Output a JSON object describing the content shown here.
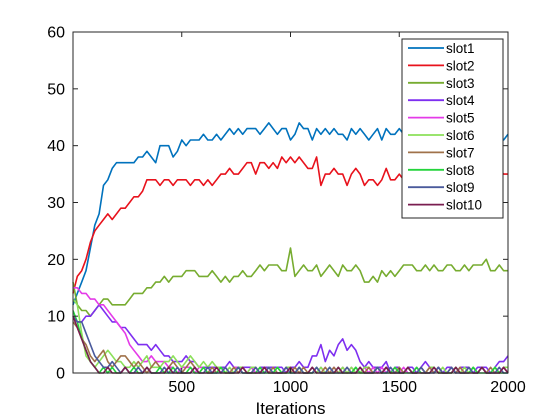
{
  "chart_data": {
    "type": "line",
    "title": "",
    "xlabel": "Iterations",
    "ylabel": "",
    "xlim": [
      0,
      2000
    ],
    "ylim": [
      0,
      60
    ],
    "xticks": [
      500,
      1000,
      1500,
      2000
    ],
    "xtick_labels": [
      "500",
      "1000",
      "1500",
      "2000"
    ],
    "yticks": [
      0,
      10,
      20,
      30,
      40,
      50,
      60
    ],
    "ytick_labels": [
      "0",
      "10",
      "20",
      "30",
      "40",
      "50",
      "60"
    ],
    "grid": false,
    "legend_position": "top-right",
    "x": [
      0,
      20,
      40,
      60,
      80,
      100,
      120,
      140,
      160,
      180,
      200,
      220,
      240,
      260,
      280,
      300,
      320,
      340,
      360,
      380,
      400,
      420,
      440,
      460,
      480,
      500,
      520,
      540,
      560,
      580,
      600,
      620,
      640,
      660,
      680,
      700,
      720,
      740,
      760,
      780,
      800,
      820,
      840,
      860,
      880,
      900,
      920,
      940,
      960,
      980,
      1000,
      1020,
      1040,
      1060,
      1080,
      1100,
      1120,
      1140,
      1160,
      1180,
      1200,
      1220,
      1240,
      1260,
      1280,
      1300,
      1320,
      1340,
      1360,
      1380,
      1400,
      1420,
      1440,
      1460,
      1480,
      1500,
      1520,
      1540,
      1560,
      1580,
      1600,
      1620,
      1640,
      1660,
      1680,
      1700,
      1720,
      1740,
      1760,
      1780,
      1800,
      1820,
      1840,
      1860,
      1880,
      1900,
      1920,
      1940,
      1960,
      1980,
      2000
    ],
    "series": [
      {
        "name": "slot1",
        "color": "#0072BD",
        "values": [
          12,
          14,
          16,
          18,
          22,
          26,
          28,
          33,
          34,
          36,
          37,
          37,
          37,
          37,
          37,
          38,
          38,
          39,
          38,
          37,
          40,
          40,
          40,
          38,
          39,
          41,
          40,
          41,
          41,
          41,
          42,
          41,
          41,
          42,
          41,
          42,
          43,
          42,
          43,
          42,
          43,
          43,
          43,
          42,
          43,
          44,
          43,
          42,
          43,
          43,
          41,
          42,
          44,
          43,
          43,
          41,
          43,
          42,
          43,
          42,
          43,
          42,
          42,
          41,
          43,
          42,
          43,
          42,
          41,
          42,
          43,
          41,
          43,
          42,
          42,
          43,
          42,
          41,
          42,
          43,
          41,
          42,
          43,
          42,
          41,
          42,
          43,
          41,
          42,
          43,
          41,
          42,
          43,
          43,
          42,
          42,
          42,
          42,
          41,
          41,
          42
        ]
      },
      {
        "name": "slot2",
        "color": "#E8121C",
        "values": [
          14,
          17,
          18,
          20,
          23,
          25,
          26,
          27,
          28,
          27,
          28,
          29,
          29,
          30,
          31,
          31,
          32,
          34,
          34,
          34,
          33,
          34,
          34,
          33,
          34,
          34,
          34,
          33,
          34,
          34,
          33,
          34,
          33,
          34,
          35,
          35,
          36,
          35,
          35,
          36,
          37,
          37,
          35,
          37,
          37,
          36,
          37,
          36,
          38,
          37,
          38,
          37,
          38,
          37,
          36,
          36,
          38,
          33,
          35,
          35,
          36,
          35,
          35,
          33,
          35,
          36,
          35,
          33,
          34,
          34,
          33,
          34,
          36,
          34,
          34,
          35,
          34,
          37,
          34,
          35,
          35,
          34,
          36,
          36,
          37,
          35,
          36,
          36,
          37,
          35,
          37,
          36,
          35,
          37,
          36,
          36,
          35,
          35,
          36,
          35,
          35
        ]
      },
      {
        "name": "slot3",
        "color": "#77AC30",
        "values": [
          16,
          12,
          11,
          11,
          10,
          11,
          12,
          13,
          13,
          12,
          12,
          12,
          12,
          13,
          14,
          14,
          14,
          15,
          15,
          16,
          16,
          17,
          16,
          17,
          17,
          17,
          18,
          18,
          18,
          17,
          17,
          17,
          18,
          17,
          16,
          17,
          16,
          17,
          17,
          18,
          17,
          17,
          18,
          19,
          18,
          19,
          19,
          19,
          18,
          18,
          22,
          17,
          18,
          19,
          18,
          18,
          19,
          17,
          18,
          19,
          18,
          17,
          19,
          18,
          18,
          19,
          18,
          16,
          16,
          17,
          16,
          18,
          17,
          18,
          17,
          18,
          19,
          19,
          19,
          18,
          18,
          19,
          18,
          19,
          18,
          18,
          19,
          19,
          18,
          18,
          19,
          18,
          19,
          19,
          19,
          20,
          18,
          18,
          19,
          18,
          18
        ]
      },
      {
        "name": "slot4",
        "color": "#7E2FF0",
        "values": [
          10,
          9,
          9,
          10,
          10,
          11,
          12,
          11,
          10,
          9,
          9,
          8,
          8,
          7,
          6,
          5,
          5,
          5,
          4,
          5,
          4,
          3,
          3,
          2,
          2,
          2,
          3,
          2,
          2,
          1,
          1,
          1,
          1,
          1,
          1,
          1,
          2,
          1,
          1,
          1,
          1,
          1,
          0,
          1,
          1,
          1,
          1,
          1,
          1,
          0,
          1,
          1,
          2,
          1,
          1,
          3,
          3,
          5,
          2,
          4,
          3,
          5,
          6,
          4,
          5,
          4,
          2,
          1,
          2,
          1,
          1,
          1,
          2,
          0,
          1,
          1,
          0,
          1,
          1,
          0,
          1,
          2,
          1,
          0,
          1,
          0,
          1,
          1,
          0,
          1,
          1,
          1,
          0,
          1,
          1,
          1,
          0,
          1,
          2,
          2,
          3
        ]
      },
      {
        "name": "slot5",
        "color": "#E43BE8",
        "values": [
          15,
          15,
          14,
          14,
          13,
          13,
          12,
          12,
          11,
          10,
          9,
          8,
          7,
          5,
          4,
          3,
          2,
          2,
          3,
          2,
          2,
          2,
          1,
          1,
          0,
          1,
          1,
          1,
          0,
          1,
          1,
          0,
          0,
          1,
          0,
          1,
          0,
          1,
          1,
          0,
          0,
          1,
          0,
          0,
          1,
          0,
          1,
          0,
          0,
          1,
          1,
          0,
          1,
          0,
          0,
          1,
          0,
          1,
          0,
          0,
          1,
          0,
          1,
          0,
          1,
          0,
          0,
          1,
          0,
          1,
          0,
          1,
          0,
          0,
          1,
          0,
          1,
          0,
          0,
          1,
          0,
          0,
          1,
          0,
          1,
          0,
          0,
          1,
          0,
          1,
          0,
          0,
          1,
          0,
          1,
          0,
          0,
          1,
          0,
          1,
          0
        ]
      },
      {
        "name": "slot6",
        "color": "#8CE05A",
        "values": [
          13,
          12,
          7,
          3,
          2,
          1,
          2,
          3,
          4,
          3,
          2,
          2,
          1,
          1,
          2,
          1,
          2,
          3,
          1,
          1,
          1,
          2,
          2,
          3,
          2,
          1,
          2,
          3,
          2,
          1,
          2,
          1,
          2,
          1,
          1,
          0,
          1,
          0,
          1,
          1,
          0,
          1,
          1,
          0,
          0,
          1,
          0,
          1,
          0,
          1,
          1,
          0,
          1,
          0,
          0,
          1,
          0,
          1,
          0,
          1,
          0,
          0,
          1,
          0,
          1,
          0,
          0,
          1,
          1,
          0,
          1,
          0,
          1,
          0,
          0,
          1,
          0,
          1,
          0,
          0,
          1,
          0,
          1,
          1,
          0,
          1,
          0,
          0,
          1,
          0,
          1,
          0,
          1,
          0,
          1,
          0,
          0,
          1,
          0,
          1,
          1
        ]
      },
      {
        "name": "slot7",
        "color": "#A0724A",
        "values": [
          9,
          8,
          6,
          5,
          3,
          2,
          3,
          4,
          2,
          1,
          2,
          3,
          3,
          2,
          1,
          2,
          1,
          0,
          1,
          2,
          1,
          0,
          1,
          2,
          1,
          0,
          1,
          2,
          1,
          0,
          1,
          0,
          1,
          0,
          1,
          0,
          0,
          1,
          0,
          1,
          0,
          0,
          1,
          0,
          1,
          0,
          1,
          0,
          0,
          1,
          0,
          1,
          0,
          1,
          0,
          0,
          1,
          0,
          1,
          0,
          1,
          0,
          0,
          1,
          0,
          1,
          0,
          0,
          1,
          0,
          1,
          0,
          1,
          0,
          0,
          1,
          0,
          1,
          0,
          0,
          1,
          0,
          1,
          0,
          1,
          0,
          0,
          1,
          0,
          1,
          0,
          1,
          0,
          0,
          1,
          0,
          1,
          0,
          0,
          1,
          0
        ]
      },
      {
        "name": "slot8",
        "color": "#24D43C",
        "values": [
          11,
          9,
          6,
          4,
          2,
          1,
          0,
          1,
          0,
          1,
          0,
          0,
          1,
          0,
          1,
          0,
          0,
          1,
          0,
          0,
          1,
          0,
          0,
          1,
          0,
          0,
          0,
          1,
          0,
          0,
          1,
          0,
          0,
          0,
          1,
          0,
          0,
          0,
          1,
          0,
          0,
          0,
          0,
          1,
          0,
          0,
          0,
          1,
          0,
          0,
          0,
          0,
          1,
          0,
          0,
          0,
          1,
          0,
          0,
          0,
          0,
          1,
          0,
          0,
          0,
          1,
          0,
          0,
          0,
          0,
          1,
          0,
          0,
          0,
          1,
          0,
          0,
          0,
          0,
          1,
          0,
          0,
          0,
          1,
          0,
          0,
          0,
          0,
          1,
          0,
          0,
          0,
          1,
          0,
          0,
          0,
          0,
          1,
          0,
          0,
          0
        ]
      },
      {
        "name": "slot9",
        "color": "#4A5A9C",
        "values": [
          10,
          9,
          9,
          7,
          5,
          3,
          2,
          1,
          1,
          2,
          1,
          0,
          1,
          0,
          0,
          1,
          0,
          1,
          0,
          0,
          0,
          1,
          0,
          0,
          1,
          0,
          0,
          0,
          1,
          0,
          0,
          1,
          0,
          0,
          0,
          1,
          0,
          0,
          1,
          0,
          0,
          0,
          1,
          0,
          0,
          1,
          0,
          0,
          0,
          1,
          0,
          0,
          1,
          0,
          0,
          0,
          1,
          0,
          0,
          1,
          0,
          0,
          0,
          1,
          0,
          0,
          1,
          0,
          0,
          0,
          1,
          0,
          0,
          1,
          0,
          0,
          0,
          1,
          0,
          0,
          1,
          0,
          0,
          0,
          1,
          0,
          0,
          1,
          0,
          0,
          0,
          1,
          0,
          0,
          1,
          0,
          0,
          0,
          1,
          0,
          0
        ]
      },
      {
        "name": "slot10",
        "color": "#7A1E50",
        "values": [
          10,
          8,
          6,
          4,
          2,
          1,
          0,
          0,
          1,
          0,
          0,
          0,
          1,
          0,
          0,
          0,
          0,
          1,
          0,
          0,
          0,
          0,
          1,
          0,
          0,
          0,
          0,
          0,
          1,
          0,
          0,
          0,
          0,
          1,
          0,
          0,
          0,
          0,
          0,
          1,
          0,
          0,
          0,
          0,
          1,
          0,
          0,
          0,
          0,
          0,
          1,
          0,
          0,
          0,
          0,
          1,
          0,
          0,
          0,
          0,
          0,
          1,
          0,
          0,
          0,
          0,
          1,
          0,
          0,
          0,
          0,
          0,
          1,
          0,
          0,
          0,
          0,
          1,
          0,
          0,
          0,
          0,
          0,
          1,
          0,
          0,
          0,
          0,
          1,
          0,
          0,
          0,
          0,
          0,
          1,
          0,
          0,
          0,
          0,
          1,
          0
        ]
      }
    ]
  }
}
